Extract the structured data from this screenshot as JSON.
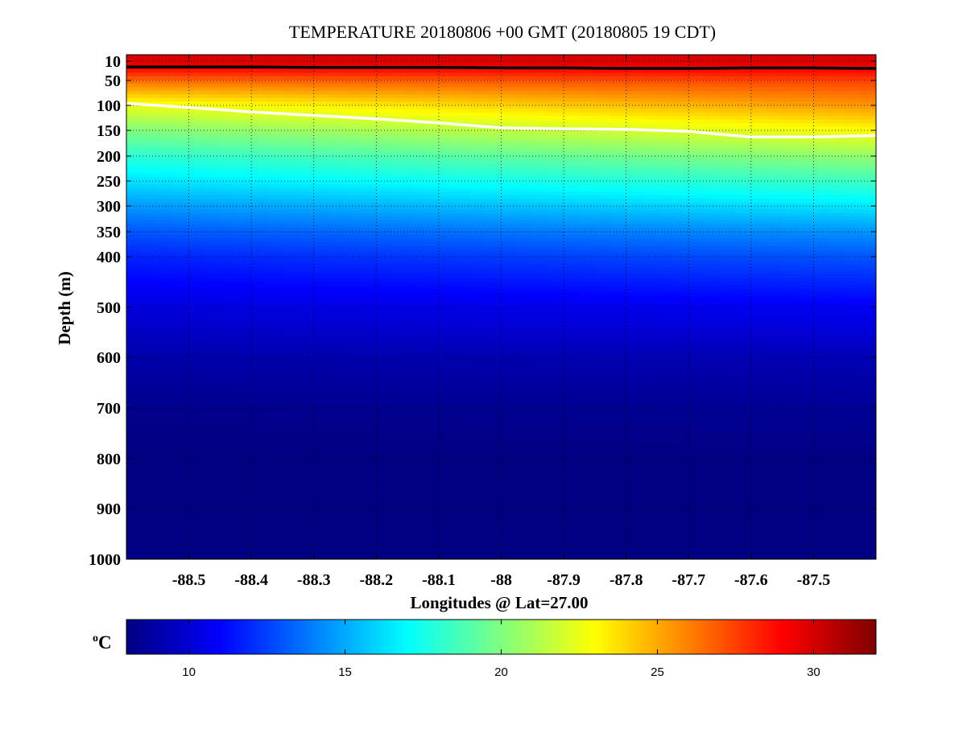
{
  "chart_data": {
    "type": "heatmap",
    "title": "TEMPERATURE 20180806 +00 GMT (20180805 19 CDT)",
    "xlabel": "Longitudes @ Lat=27.00",
    "ylabel": "Depth (m)",
    "xlim": [
      -88.6,
      -87.4
    ],
    "ylim": [
      0,
      1000
    ],
    "y_axis_reversed": true,
    "y_axis_note": "depth axis stretched near surface",
    "x_ticks": [
      -88.5,
      -88.4,
      -88.3,
      -88.2,
      -88.1,
      -88,
      -87.9,
      -87.8,
      -87.7,
      -87.6,
      -87.5
    ],
    "x_tick_labels": [
      "-88.5",
      "-88.4",
      "-88.3",
      "-88.2",
      "-88.1",
      "-88",
      "-87.9",
      "-87.8",
      "-87.7",
      "-87.6",
      "-87.5"
    ],
    "y_ticks": [
      10,
      50,
      100,
      150,
      200,
      250,
      300,
      350,
      400,
      500,
      600,
      700,
      800,
      900,
      1000
    ],
    "y_tick_labels": [
      "10",
      "50",
      "100",
      "150",
      "200",
      "250",
      "300",
      "350",
      "400",
      "500",
      "600",
      "700",
      "800",
      "900",
      "1000"
    ],
    "grid": true,
    "colorbar": {
      "label": "oC",
      "label_base": "C",
      "label_superscript": "o",
      "range": [
        8,
        32
      ],
      "ticks": [
        10,
        15,
        20,
        25,
        30
      ],
      "tick_labels": [
        "10",
        "15",
        "20",
        "25",
        "30"
      ],
      "colormap": "jet"
    },
    "temperature_profile": {
      "depths": [
        0,
        20,
        50,
        100,
        150,
        200,
        250,
        300,
        350,
        400,
        500,
        600,
        700,
        800,
        900,
        1000
      ],
      "west_values": [
        30,
        29.5,
        26.5,
        22.5,
        20,
        18,
        16.3,
        14.6,
        13,
        11.8,
        10.2,
        9,
        8.3,
        8,
        8,
        8
      ],
      "east_values": [
        30,
        29.5,
        27.5,
        25.5,
        23,
        20.5,
        18.5,
        16.5,
        14.5,
        13,
        10.8,
        9.3,
        8.5,
        8.1,
        8,
        8
      ]
    },
    "contours": [
      {
        "value": 29,
        "color": "#000000",
        "longitudes": [
          -88.6,
          -88.5,
          -88.4,
          -88.3,
          -88.2,
          -88.1,
          -88,
          -87.9,
          -87.8,
          -87.7,
          -87.6,
          -87.5,
          -87.4
        ],
        "depths": [
          22,
          22,
          22,
          23,
          23,
          23,
          24,
          24,
          25,
          25,
          24,
          24,
          25
        ]
      },
      {
        "value": 26,
        "color": "#ffffff",
        "longitudes": [
          -88.6,
          -88.5,
          -88.4,
          -88.3,
          -88.2,
          -88.1,
          -88,
          -87.9,
          -87.8,
          -87.7,
          -87.6,
          -87.5,
          -87.4
        ],
        "depths": [
          96,
          104,
          113,
          120,
          127,
          135,
          145,
          147,
          148,
          152,
          163,
          163,
          160
        ]
      }
    ]
  }
}
